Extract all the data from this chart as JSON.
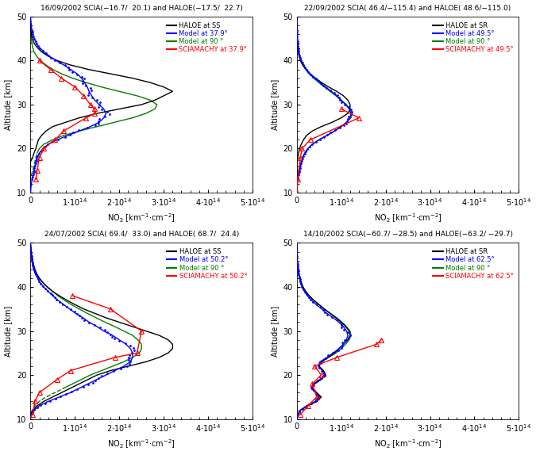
{
  "panels": [
    {
      "title": "16/09/2002 SCIA(−16.7/  20.1) and HALOE(−17.5/  22.7)",
      "haloe_label": "HALOE at SS",
      "model_sza_label": "Model at 37.9°",
      "model_90_label": "Model at 90 °",
      "scia_label": "SCIAMACHY at 37.9°",
      "type": "SS"
    },
    {
      "title": "22/09/2002 SCIA( 46.4/−115.4) and HALOE( 48.6/−115.0)",
      "haloe_label": "HALOE at SR",
      "model_sza_label": "Model at 49.5°",
      "model_90_label": "Model at 90 °",
      "scia_label": "SCIAMACHY at 49.5°",
      "type": "SR"
    },
    {
      "title": "24/07/2002 SCIA( 69.4/  33.0) and HALOE( 68.7/  24.4)",
      "haloe_label": "HALOE at SS",
      "model_sza_label": "Model at 50.2°",
      "model_90_label": "Model at 90 °",
      "scia_label": "SCIAMACHY at 50.2°",
      "type": "SS"
    },
    {
      "title": "14/10/2002 SCIA(−60.7/ −28.5) and HALOE(−63.2/ −29.7)",
      "haloe_label": "HALOE at SR",
      "model_sza_label": "Model at 62.5°",
      "model_90_label": "Model at 90 °",
      "scia_label": "SCIAMACHY at 62.5°",
      "type": "SR"
    }
  ],
  "xlim": [
    0,
    500000000000000.0
  ],
  "ylim": [
    10,
    50
  ],
  "xlabel": "NO2 [km-1*cm-2]",
  "ylabel": "Altitude [km]",
  "colors": {
    "haloe": "black",
    "model_sza": "blue",
    "model_90": "green",
    "scia": "red"
  },
  "xtick_positions": [
    0,
    100000000000000.0,
    200000000000000.0,
    300000000000000.0,
    400000000000000.0,
    500000000000000.0
  ],
  "xtick_labels": [
    "0",
    "1·10¹⁴",
    "2·10¹⁴",
    "3·10¹⁴",
    "4·10¹⁴",
    "5·10¹⁴"
  ],
  "ytick_positions": [
    10,
    20,
    30,
    40,
    50
  ]
}
